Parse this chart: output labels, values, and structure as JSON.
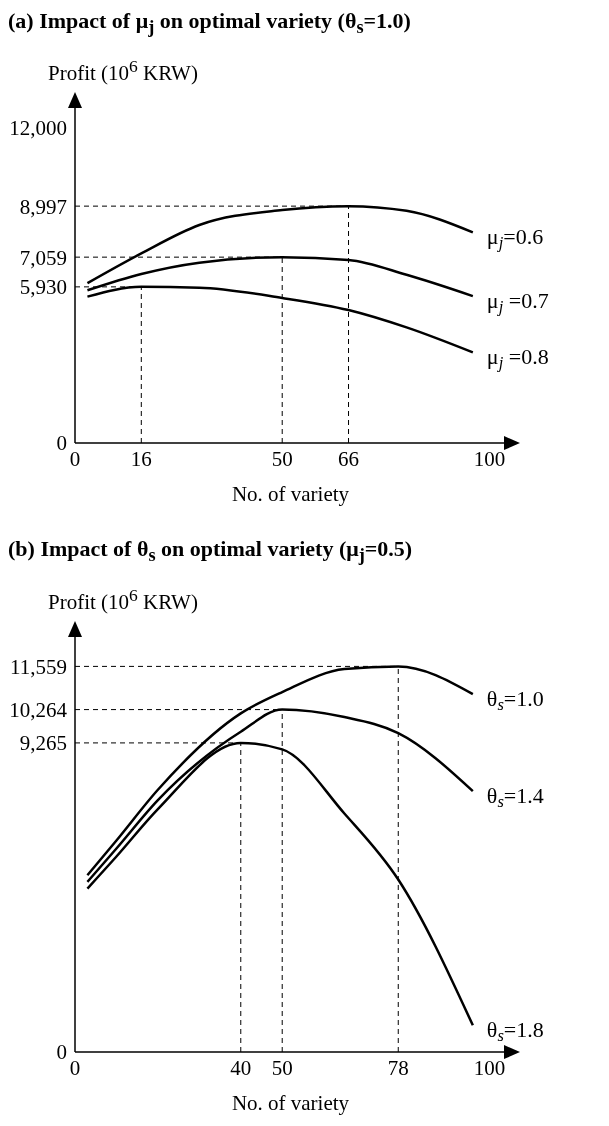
{
  "chart_data": [
    {
      "type": "line",
      "title": "(a) Impact of μ$_{j}$ on optimal variety (θ$_{s}$=1.0)",
      "xlabel": "No. of variety",
      "ylabel": "Profit (10$^{6}$ KRW)",
      "x": [
        3,
        16,
        30,
        50,
        66,
        80,
        96
      ],
      "series": [
        {
          "name": "μ$_{j}$=0.6",
          "color": "#000000",
          "values": [
            6070,
            7200,
            8280,
            8850,
            8997,
            8820,
            8000
          ]
        },
        {
          "name": "μ$_{j}$ =0.7",
          "color": "#000000",
          "values": [
            5800,
            6420,
            6850,
            7059,
            6950,
            6390,
            5580
          ]
        },
        {
          "name": "μ$_{j}$ =0.8",
          "color": "#000000",
          "values": [
            5560,
            5930,
            5900,
            5510,
            5050,
            4390,
            3440
          ]
        }
      ],
      "xlim": [
        0,
        104
      ],
      "xticks": [
        0,
        16,
        50,
        66,
        100
      ],
      "ylim": [
        0,
        12800
      ],
      "yticks": [
        0,
        {
          "value": 5930,
          "label": "5,930"
        },
        {
          "value": 7059,
          "label": "7,059"
        },
        {
          "value": 8997,
          "label": "8,997"
        },
        {
          "value": 12000,
          "label": "12,000"
        }
      ],
      "ref_lines": [
        {
          "axis": "x",
          "value": 16,
          "color": "#000000",
          "line_style": "dashed"
        },
        {
          "axis": "x",
          "value": 50,
          "color": "#000000",
          "line_style": "dashed"
        },
        {
          "axis": "x",
          "value": 66,
          "color": "#000000",
          "line_style": "dashed"
        },
        {
          "axis": "y",
          "value": 5930,
          "color": "#000000",
          "line_style": "dashed"
        },
        {
          "axis": "y",
          "value": 7059,
          "color": "#000000",
          "line_style": "dashed"
        },
        {
          "axis": "y",
          "value": 8997,
          "color": "#000000",
          "line_style": "dashed"
        }
      ],
      "grid": false,
      "legend": false,
      "marker": "none",
      "line_style": "solid"
    },
    {
      "type": "line",
      "title": "(b) Impact of θ$_{s}$ on optimal variety (μ$_{j}$=0.5)",
      "xlabel": "No. of variety",
      "ylabel": "Profit (10$^{6}$ KRW)",
      "x": [
        3,
        10,
        20,
        40,
        50,
        65,
        78,
        96
      ],
      "series": [
        {
          "name": "θ$_{s}$=1.0",
          "color": "#000000",
          "values": [
            5300,
            6340,
            7860,
            10150,
            10790,
            11480,
            11559,
            10730
          ]
        },
        {
          "name": "θ$_{s}$=1.4",
          "color": "#000000",
          "values": [
            5100,
            6100,
            7550,
            9600,
            10264,
            10040,
            9560,
            7820
          ]
        },
        {
          "name": "θ$_{s}$=1.8",
          "color": "#000000",
          "values": [
            4900,
            5860,
            7280,
            9265,
            9070,
            7150,
            5170,
            800
          ]
        }
      ],
      "xlim": [
        0,
        104
      ],
      "xticks": [
        0,
        40,
        50,
        78,
        100
      ],
      "ylim": [
        0,
        12500
      ],
      "yticks": [
        0,
        {
          "value": 9265,
          "label": "9,265"
        },
        {
          "value": 10264,
          "label": "10,264"
        },
        {
          "value": 11559,
          "label": "11,559"
        }
      ],
      "ref_lines": [
        {
          "axis": "x",
          "value": 40,
          "color": "#000000",
          "line_style": "dashed"
        },
        {
          "axis": "x",
          "value": 50,
          "color": "#000000",
          "line_style": "dashed"
        },
        {
          "axis": "x",
          "value": 78,
          "color": "#000000",
          "line_style": "dashed"
        },
        {
          "axis": "y",
          "value": 9265,
          "color": "#000000",
          "line_style": "dashed"
        },
        {
          "axis": "y",
          "value": 10264,
          "color": "#000000",
          "line_style": "dashed"
        },
        {
          "axis": "y",
          "value": 11559,
          "color": "#000000",
          "line_style": "dashed"
        }
      ],
      "grid": false,
      "legend": false,
      "marker": "none",
      "line_style": "solid"
    }
  ]
}
